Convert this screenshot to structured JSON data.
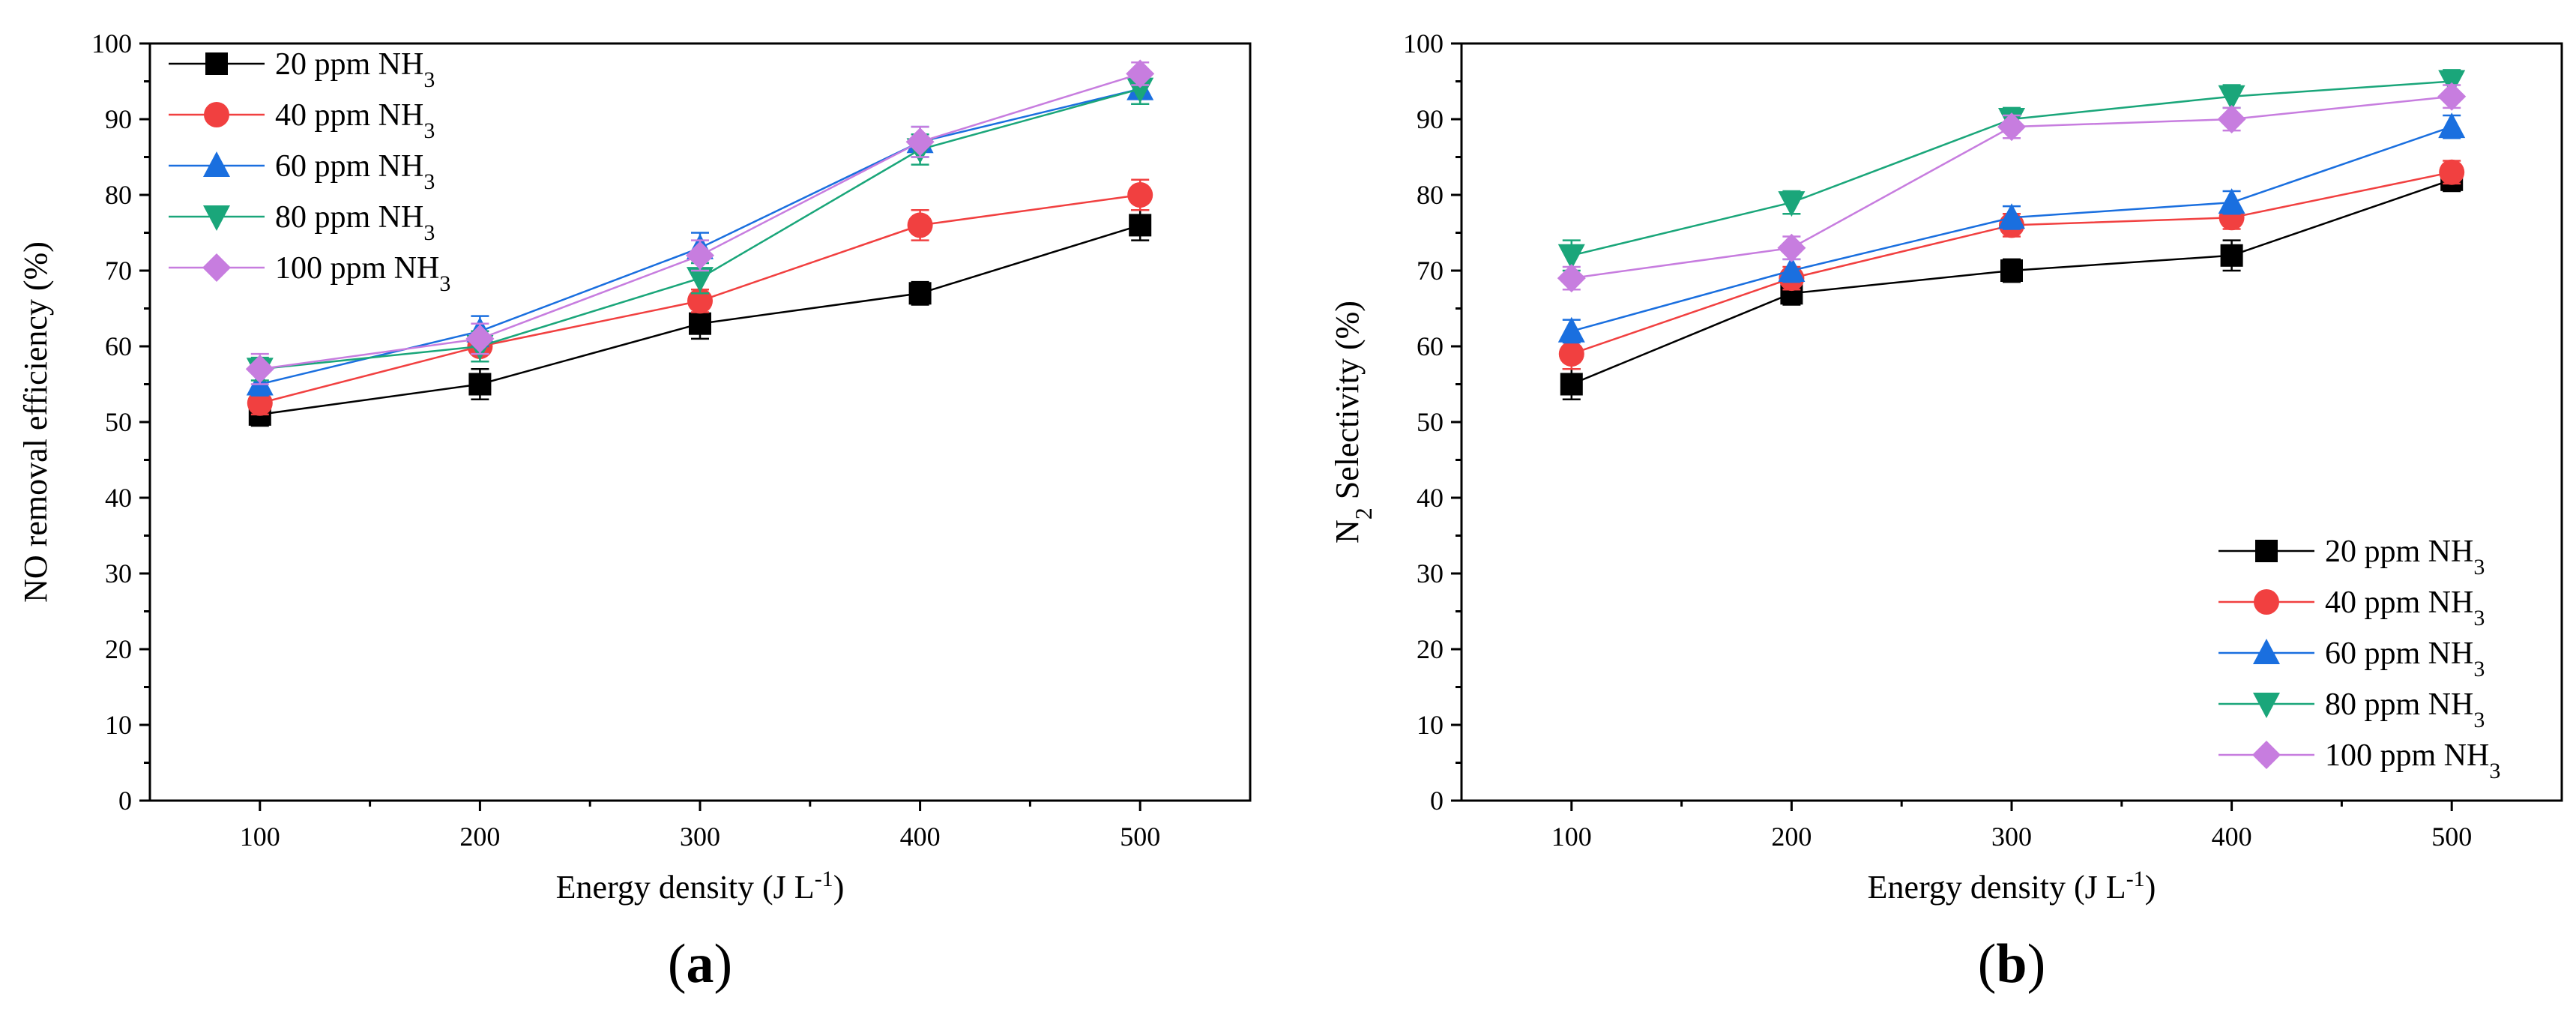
{
  "chart_data": [
    {
      "type": "line",
      "panel_label_open": "(",
      "panel_label_letter": "a",
      "panel_label_close": ")",
      "xlabel": "Energy density (J L",
      "xlabel_sup": "-1",
      "xlabel_end": ")",
      "ylabel": "NO removal efficiency (%)",
      "ylabel_sub": "",
      "ylabel_rest": "",
      "x": [
        100,
        200,
        300,
        400,
        500
      ],
      "xticks": [
        100,
        200,
        300,
        400,
        500
      ],
      "xlim": [
        50,
        550
      ],
      "yticks": [
        0,
        10,
        20,
        30,
        40,
        50,
        60,
        70,
        80,
        90,
        100
      ],
      "ylim": [
        0,
        100
      ],
      "legend_position": "top-left",
      "series": [
        {
          "name": "20 ppm NH",
          "sub": "3",
          "color": "#000000",
          "marker": "square",
          "values": [
            51,
            55,
            63,
            67,
            76
          ],
          "errors": [
            1.5,
            2,
            2,
            1.5,
            2
          ]
        },
        {
          "name": "40 ppm NH",
          "sub": "3",
          "color": "#f14040",
          "marker": "circle",
          "values": [
            52.5,
            60,
            66,
            76,
            80
          ],
          "errors": [
            1.5,
            2,
            1.5,
            2,
            2
          ]
        },
        {
          "name": "60 ppm NH",
          "sub": "3",
          "color": "#1a6fdf",
          "marker": "triangle-up",
          "values": [
            55,
            62,
            73,
            87,
            94
          ],
          "errors": [
            1.5,
            2,
            2,
            2,
            2
          ]
        },
        {
          "name": "80 ppm NH",
          "sub": "3",
          "color": "#1aa67a",
          "marker": "triangle-down",
          "values": [
            57,
            60,
            69,
            86,
            94
          ],
          "errors": [
            1.5,
            2,
            2,
            2,
            2
          ]
        },
        {
          "name": "100 ppm NH",
          "sub": "3",
          "color": "#c77ddf",
          "marker": "diamond",
          "values": [
            57,
            61,
            72,
            87,
            96
          ],
          "errors": [
            2,
            2,
            2,
            2,
            1.5
          ]
        }
      ]
    },
    {
      "type": "line",
      "panel_label_open": "(",
      "panel_label_letter": "b",
      "panel_label_close": ")",
      "xlabel": "Energy density (J L",
      "xlabel_sup": "-1",
      "xlabel_end": ")",
      "ylabel": "N",
      "ylabel_sub": "2",
      "ylabel_rest": " Selectivity (%)",
      "x": [
        100,
        200,
        300,
        400,
        500
      ],
      "xticks": [
        100,
        200,
        300,
        400,
        500
      ],
      "xlim": [
        50,
        550
      ],
      "yticks": [
        0,
        10,
        20,
        30,
        40,
        50,
        60,
        70,
        80,
        90,
        100
      ],
      "ylim": [
        0,
        100
      ],
      "legend_position": "bottom-right",
      "series": [
        {
          "name": "20 ppm NH",
          "sub": "3",
          "color": "#000000",
          "marker": "square",
          "values": [
            55,
            67,
            70,
            72,
            82
          ],
          "errors": [
            2,
            1.5,
            1.5,
            2,
            1.5
          ]
        },
        {
          "name": "40 ppm NH",
          "sub": "3",
          "color": "#f14040",
          "marker": "circle",
          "values": [
            59,
            69,
            76,
            77,
            83
          ],
          "errors": [
            2,
            1.5,
            1.5,
            1.5,
            1.5
          ]
        },
        {
          "name": "60 ppm NH",
          "sub": "3",
          "color": "#1a6fdf",
          "marker": "triangle-up",
          "values": [
            62,
            70,
            77,
            79,
            89
          ],
          "errors": [
            1.5,
            1.5,
            1.5,
            1.5,
            1.5
          ]
        },
        {
          "name": "80 ppm NH",
          "sub": "3",
          "color": "#1aa67a",
          "marker": "triangle-down",
          "values": [
            72,
            79,
            90,
            93,
            95
          ],
          "errors": [
            2,
            1.5,
            1.5,
            1.5,
            1.5
          ]
        },
        {
          "name": "100 ppm NH",
          "sub": "3",
          "color": "#c77ddf",
          "marker": "diamond",
          "values": [
            69,
            73,
            89,
            90,
            93
          ],
          "errors": [
            1.5,
            1.5,
            1.5,
            1.5,
            1.5
          ]
        }
      ]
    }
  ]
}
